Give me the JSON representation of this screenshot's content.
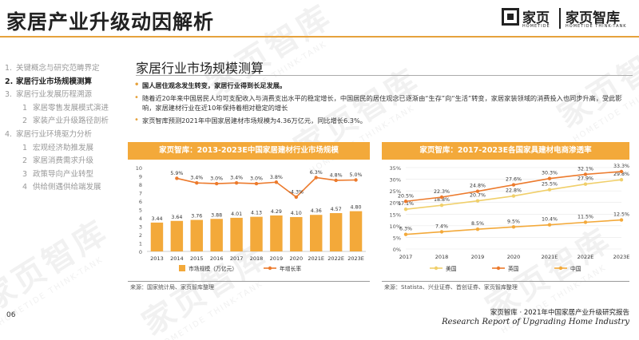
{
  "header": {
    "title": "家居产业升级动因解析",
    "logo_brand": "家页",
    "logo_brand2": "家页智库",
    "logo_sub1": "HOMETIDE",
    "logo_sub2": "HOMETIDE THINK-TANK"
  },
  "watermark": {
    "text": "家页智库",
    "sub": "HOMETIDE THINK-TANK"
  },
  "nav": {
    "items": [
      {
        "num": "1.",
        "label": "关键概念与研究范畴界定",
        "level": 1,
        "active": false
      },
      {
        "num": "2.",
        "label": "家居行业市场规模测算",
        "level": 1,
        "active": true
      },
      {
        "num": "3.",
        "label": "家居行业发展历程溯源",
        "level": 1,
        "active": false
      },
      {
        "num": "1",
        "label": "家居零售发展模式演进",
        "level": 2,
        "active": false
      },
      {
        "num": "2",
        "label": "家装产业升级路径剖析",
        "level": 2,
        "active": false
      },
      {
        "num": "4.",
        "label": "家居行业环境驱力分析",
        "level": 1,
        "active": false
      },
      {
        "num": "1",
        "label": "宏观经济助推发展",
        "level": 2,
        "active": false
      },
      {
        "num": "2",
        "label": "家居消费需求升级",
        "level": 2,
        "active": false
      },
      {
        "num": "3",
        "label": "政策导向产业转型",
        "level": 2,
        "active": false
      },
      {
        "num": "4",
        "label": "供给侧遇供给端发展",
        "level": 2,
        "active": false
      }
    ]
  },
  "section": {
    "title": "家居行业市场规模测算",
    "bullets": [
      {
        "text": "国人居住观念发生转变，家居行业得到长足发展。",
        "bold": true
      },
      {
        "text": "随着近20年来中国居民人均可支配收入与消费支出水平的稳定增长，中国居民的居住观念已逐渐由“生存”向“生活”转变，家居家装领域的消费投入也同步升高，受此影响，家居建材行业在近10年保持着相对稳定的增长",
        "bold": false
      },
      {
        "text": "家页智库预测2021年中国家居建材市场规模为4.36万亿元，同比增长6.3%。",
        "bold": false
      }
    ]
  },
  "left_chart": {
    "header": "家页智库：2013-2023E中国家居建材行业市场规模",
    "source": "来源：国家统计局、家页智库整理"
  },
  "right_chart": {
    "header": "家页智库：2017-2023E各国家具建材电商渗透率",
    "source": "来源：Statista、兴业证券、首创证券、家页智库整理"
  },
  "footer": {
    "page": "06",
    "line1": "家页智库 · 2021年中国家居产业升级研究报告",
    "line2": "Research Report of Upgrading Home Industry"
  },
  "chart_data": [
    {
      "type": "bar",
      "title": "家页智库：2013-2023E中国家居建材行业市场规模",
      "categories": [
        "2013",
        "2014",
        "2015",
        "2016",
        "2017",
        "2018",
        "2019",
        "2020",
        "2021E",
        "2022E",
        "2023E"
      ],
      "series": [
        {
          "name": "市场规模（万亿元）",
          "type": "bar",
          "color": "#f3a93a",
          "values": [
            3.44,
            3.64,
            3.76,
            3.88,
            4.01,
            4.13,
            4.29,
            4.1,
            4.36,
            4.57,
            4.8
          ]
        },
        {
          "name": "年增长率",
          "type": "line",
          "color": "#ec7a2c",
          "values": [
            null,
            5.9,
            3.4,
            3.0,
            3.4,
            3.0,
            3.8,
            -4.3,
            6.3,
            4.8,
            5.0
          ],
          "labels": [
            "",
            "5.9%",
            "3.4%",
            "3.0%",
            "3.4%",
            "3.0%",
            "3.8%",
            "-4.3%",
            "6.3%",
            "4.8%",
            "5.0%"
          ]
        }
      ],
      "yticks": [
        "10",
        "9",
        "8",
        "7",
        "6",
        "5",
        "4",
        "3",
        "2",
        "1",
        "0"
      ],
      "ylim": [
        0,
        10
      ],
      "growth_range": [
        -10,
        10
      ],
      "legend": [
        "市场规模（万亿元）",
        "年增长率"
      ]
    },
    {
      "type": "line",
      "title": "家页智库：2017-2023E各国家具建材电商渗透率",
      "categories": [
        "2017",
        "2018",
        "2019",
        "2020",
        "2021E",
        "2022E",
        "2023E"
      ],
      "series": [
        {
          "name": "美国",
          "color": "#f0cf6a",
          "values": [
            17.1,
            18.8,
            20.7,
            22.8,
            25.5,
            27.9,
            29.8
          ],
          "labels": [
            "17.1%",
            "18.8%",
            "20.7%",
            "22.8%",
            "25.5%",
            "27.9%",
            "29.8%"
          ]
        },
        {
          "name": "英国",
          "color": "#ec7a2c",
          "values": [
            20.5,
            22.3,
            24.8,
            27.6,
            30.3,
            32.1,
            33.3
          ],
          "labels": [
            "20.5%",
            "22.3%",
            "24.8%",
            "27.6%",
            "30.3%",
            "32.1%",
            "33.3%"
          ]
        },
        {
          "name": "中国",
          "color": "#f3a93a",
          "values": [
            6.3,
            7.4,
            8.5,
            9.5,
            10.4,
            11.5,
            12.5
          ],
          "labels": [
            "6.3%",
            "7.4%",
            "8.5%",
            "9.5%",
            "10.4%",
            "11.5%",
            "12.5%"
          ]
        }
      ],
      "yticks": [
        "35%",
        "30%",
        "25%",
        "20%",
        "15%",
        "10%",
        "5%",
        "0%"
      ],
      "ylim": [
        0,
        35
      ],
      "legend": [
        "美国",
        "英国",
        "中国"
      ]
    }
  ]
}
